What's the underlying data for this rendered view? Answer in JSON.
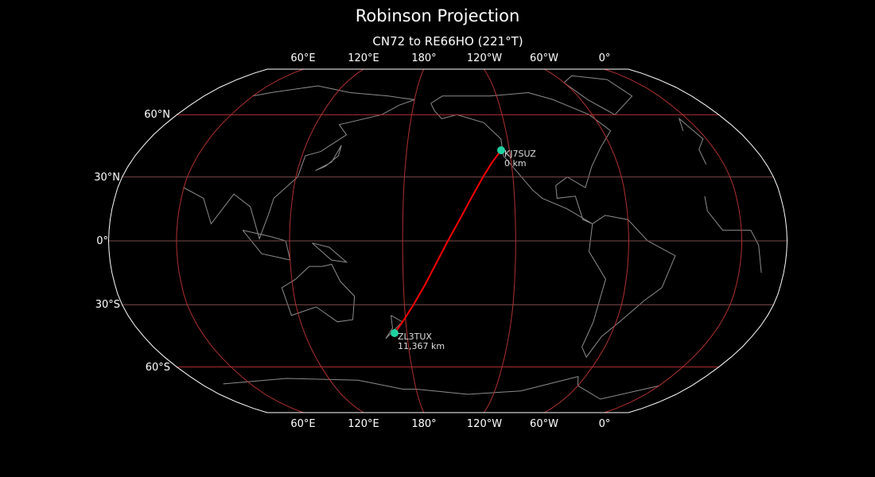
{
  "title": "Robinson Projection",
  "subtitle": "CN72 to RE66HO (221°T)",
  "map": {
    "projection": "Robinson",
    "lon_ticks": [
      "60°E",
      "120°E",
      "180°",
      "120°W",
      "60°W",
      "0°"
    ],
    "lat_ticks": [
      "60°N",
      "30°N",
      "0°",
      "30°S",
      "60°S"
    ],
    "colors": {
      "background": "#000000",
      "coastline": "#8c8c8c",
      "graticule": "#b03030",
      "path": "#ff0000",
      "station": "#1fd1a0",
      "outline": "#ffffff"
    }
  },
  "stations": [
    {
      "call": "KJ7SUZ",
      "distance": "0 km"
    },
    {
      "call": "ZL3TUX",
      "distance": "11,367 km"
    }
  ]
}
